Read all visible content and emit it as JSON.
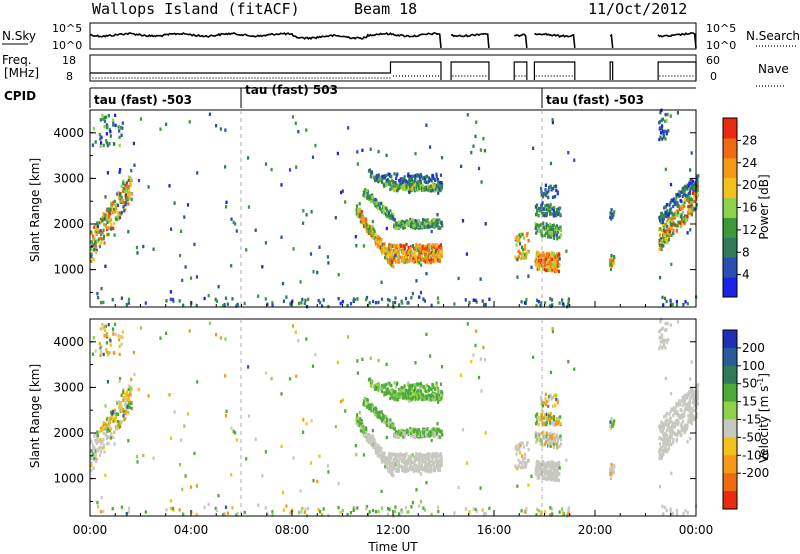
{
  "header": {
    "station": "Wallops Island (fitACF)",
    "beam": "Beam 18",
    "date": "11/Oct/2012"
  },
  "nsky_panel": {
    "left_label": "N.Sky",
    "right_label": "N.Search",
    "left_ticks": [
      "10^5",
      "10^0"
    ],
    "right_ticks": [
      "10^5",
      "10^0"
    ]
  },
  "freq_panel": {
    "left_label_1": "Freq.",
    "left_label_2": "[MHz]",
    "right_label": "Nave",
    "left_ticks": [
      "18",
      "8"
    ],
    "right_ticks": [
      "60",
      "0"
    ]
  },
  "cpid_panel": {
    "label": "CPID",
    "segments": [
      {
        "text": "tau (fast) -503",
        "start_hour": 0
      },
      {
        "text": "tau (fast) 503",
        "start_hour": 6
      },
      {
        "text": "tau (fast) -503",
        "start_hour": 18
      }
    ]
  },
  "colors": {
    "power_scale": [
      "#1a22e8",
      "#2a4fb0",
      "#2e7a5a",
      "#3a9a3a",
      "#8fd24a",
      "#f2c21a",
      "#f59a18",
      "#f06a12",
      "#e82a10"
    ],
    "velocity_scale": [
      "#1f2fb8",
      "#2b5a9a",
      "#2e7a5a",
      "#4caa3a",
      "#8fd24a",
      "#c8c8c0",
      "#f2c21a",
      "#f59a18",
      "#f06a12",
      "#e82a10"
    ]
  },
  "chart_data": [
    {
      "type": "heatmap",
      "title": "Power",
      "xlabel": "",
      "ylabel": "Slant Range [km]",
      "xlim": [
        0,
        24
      ],
      "ylim": [
        180,
        4500
      ],
      "y_ticks": [
        "1000",
        "2000",
        "3000",
        "4000"
      ],
      "colorbar": {
        "label": "Power [dB]",
        "ticks": [
          "4",
          "8",
          "12",
          "16",
          "20",
          "24",
          "28"
        ],
        "range": [
          0,
          32
        ]
      }
    },
    {
      "type": "heatmap",
      "title": "Velocity",
      "xlabel": "Time UT",
      "ylabel": "Slant Range [km]",
      "xlim": [
        0,
        24
      ],
      "ylim": [
        180,
        4500
      ],
      "x_ticks": [
        "00:00",
        "04:00",
        "08:00",
        "12:00",
        "16:00",
        "20:00",
        "00:00"
      ],
      "y_ticks": [
        "1000",
        "2000",
        "3000",
        "4000"
      ],
      "colorbar": {
        "label": "Velocity [m s^-1]",
        "ticks": [
          "200",
          "100",
          "50",
          "15",
          "-15",
          "-50",
          "-100",
          "-200"
        ]
      }
    }
  ]
}
